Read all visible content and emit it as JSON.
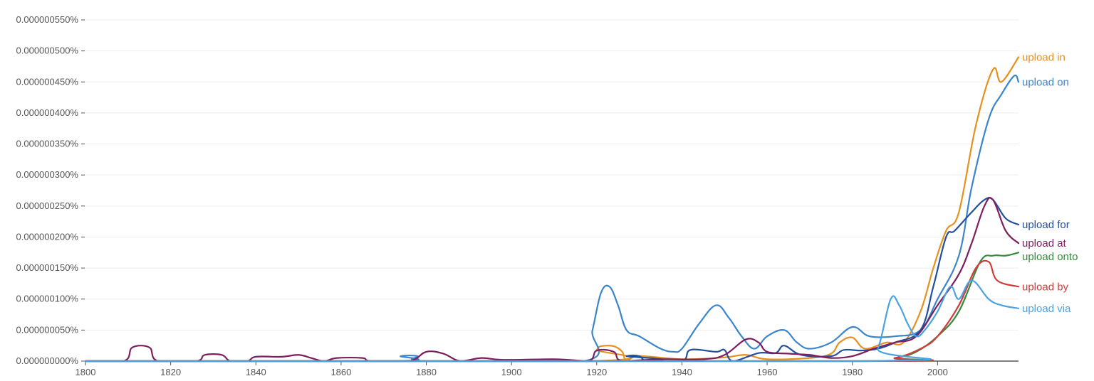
{
  "chart_data": {
    "type": "line",
    "title": "",
    "xlabel": "",
    "ylabel": "",
    "xlim": [
      1800,
      2019
    ],
    "ylim": [
      0,
      5.5e-09
    ],
    "grid": true,
    "legend_placement": "right, at line ends",
    "x_ticks": [
      {
        "value": 1800,
        "label": "1800"
      },
      {
        "value": 1820,
        "label": "1820"
      },
      {
        "value": 1840,
        "label": "1840"
      },
      {
        "value": 1860,
        "label": "1860"
      },
      {
        "value": 1880,
        "label": "1880"
      },
      {
        "value": 1900,
        "label": "1900"
      },
      {
        "value": 1920,
        "label": "1920"
      },
      {
        "value": 1940,
        "label": "1940"
      },
      {
        "value": 1960,
        "label": "1960"
      },
      {
        "value": 1980,
        "label": "1980"
      },
      {
        "value": 2000,
        "label": "2000"
      }
    ],
    "y_ticks": [
      {
        "value": 0,
        "label": "0.000000000%"
      },
      {
        "value": 5e-10,
        "label": "0.000000050%"
      },
      {
        "value": 1e-09,
        "label": "0.000000100%"
      },
      {
        "value": 1.5e-09,
        "label": "0.000000150%"
      },
      {
        "value": 2e-09,
        "label": "0.000000200%"
      },
      {
        "value": 2.5e-09,
        "label": "0.000000250%"
      },
      {
        "value": 3e-09,
        "label": "0.000000300%"
      },
      {
        "value": 3.5e-09,
        "label": "0.000000350%"
      },
      {
        "value": 4e-09,
        "label": "0.000000400%"
      },
      {
        "value": 4.5e-09,
        "label": "0.000000450%"
      },
      {
        "value": 5e-09,
        "label": "0.000000500%"
      },
      {
        "value": 5.5e-09,
        "label": "0.000000550%"
      }
    ],
    "series": [
      {
        "name": "upload in",
        "color": "#e8901f",
        "points": [
          [
            1800,
            0
          ],
          [
            1918,
            0
          ],
          [
            1920,
            1.8e-10
          ],
          [
            1921,
            2.4e-10
          ],
          [
            1924,
            2.4e-10
          ],
          [
            1926,
            1.5e-10
          ],
          [
            1927,
            0
          ],
          [
            1930,
            8e-11
          ],
          [
            1940,
            3e-11
          ],
          [
            1950,
            6e-11
          ],
          [
            1955,
            1e-10
          ],
          [
            1960,
            3e-11
          ],
          [
            1970,
            5e-11
          ],
          [
            1975,
            1.2e-10
          ],
          [
            1977,
            3e-10
          ],
          [
            1980,
            3.8e-10
          ],
          [
            1983,
            2e-10
          ],
          [
            1988,
            3e-10
          ],
          [
            1992,
            3e-10
          ],
          [
            1996,
            8e-10
          ],
          [
            1999,
            1.5e-09
          ],
          [
            2002,
            2.1e-09
          ],
          [
            2005,
            2.4e-09
          ],
          [
            2009,
            3.8e-09
          ],
          [
            2013,
            4.7e-09
          ],
          [
            2015,
            4.5e-09
          ],
          [
            2019,
            4.9e-09
          ]
        ],
        "label_text": "upload in"
      },
      {
        "name": "upload on",
        "color": "#3a85cc",
        "points": [
          [
            1800,
            0
          ],
          [
            1872,
            0
          ],
          [
            1874,
            8e-11
          ],
          [
            1878,
            8e-11
          ],
          [
            1880,
            0
          ],
          [
            1917,
            0
          ],
          [
            1919,
            5e-10
          ],
          [
            1921,
            1.1e-09
          ],
          [
            1923,
            1.2e-09
          ],
          [
            1925,
            9e-10
          ],
          [
            1927,
            5e-10
          ],
          [
            1930,
            4e-10
          ],
          [
            1935,
            2e-10
          ],
          [
            1938,
            1.5e-10
          ],
          [
            1940,
            2e-10
          ],
          [
            1944,
            6e-10
          ],
          [
            1948,
            9e-10
          ],
          [
            1951,
            7e-10
          ],
          [
            1954,
            4e-10
          ],
          [
            1957,
            2e-10
          ],
          [
            1960,
            4e-10
          ],
          [
            1964,
            5e-10
          ],
          [
            1967,
            3e-10
          ],
          [
            1970,
            2e-10
          ],
          [
            1975,
            3e-10
          ],
          [
            1980,
            5.5e-10
          ],
          [
            1984,
            4e-10
          ],
          [
            1990,
            4e-10
          ],
          [
            1996,
            5e-10
          ],
          [
            2000,
            1e-09
          ],
          [
            2005,
            1.7e-09
          ],
          [
            2008,
            2.8e-09
          ],
          [
            2012,
            3.9e-09
          ],
          [
            2015,
            4.3e-09
          ],
          [
            2018,
            4.6e-09
          ],
          [
            2019,
            4.5e-09
          ]
        ],
        "label_text": "upload on"
      },
      {
        "name": "upload for",
        "color": "#23509e",
        "points": [
          [
            1800,
            0
          ],
          [
            1925,
            0
          ],
          [
            1927,
            8e-11
          ],
          [
            1930,
            8e-11
          ],
          [
            1932,
            0
          ],
          [
            1940,
            0
          ],
          [
            1942,
            1.8e-10
          ],
          [
            1948,
            1.5e-10
          ],
          [
            1950,
            1.8e-10
          ],
          [
            1952,
            0
          ],
          [
            1958,
            1.3e-10
          ],
          [
            1962,
            1.3e-10
          ],
          [
            1964,
            2.5e-10
          ],
          [
            1968,
            1e-10
          ],
          [
            1975,
            8e-11
          ],
          [
            1978,
            1.8e-10
          ],
          [
            1982,
            1.7e-10
          ],
          [
            1986,
            2e-10
          ],
          [
            1990,
            3e-10
          ],
          [
            1996,
            5e-10
          ],
          [
            1999,
            1.2e-09
          ],
          [
            2002,
            2e-09
          ],
          [
            2004,
            2.1e-09
          ],
          [
            2008,
            2.4e-09
          ],
          [
            2011,
            2.6e-09
          ],
          [
            2013,
            2.6e-09
          ],
          [
            2016,
            2.3e-09
          ],
          [
            2019,
            2.2e-09
          ]
        ],
        "label_text": "upload for"
      },
      {
        "name": "upload at",
        "color": "#7e1e5e",
        "points": [
          [
            1800,
            0
          ],
          [
            1809,
            0
          ],
          [
            1811,
            2.2e-10
          ],
          [
            1815,
            2.2e-10
          ],
          [
            1817,
            0
          ],
          [
            1826,
            0
          ],
          [
            1828,
            1e-10
          ],
          [
            1832,
            1e-10
          ],
          [
            1834,
            0
          ],
          [
            1838,
            0
          ],
          [
            1840,
            7e-11
          ],
          [
            1846,
            7e-11
          ],
          [
            1850,
            1e-10
          ],
          [
            1853,
            5e-11
          ],
          [
            1856,
            0
          ],
          [
            1859,
            5e-11
          ],
          [
            1865,
            5e-11
          ],
          [
            1867,
            0
          ],
          [
            1876,
            0
          ],
          [
            1880,
            1.5e-10
          ],
          [
            1884,
            1.2e-10
          ],
          [
            1888,
            0
          ],
          [
            1893,
            5e-11
          ],
          [
            1898,
            2e-11
          ],
          [
            1910,
            3e-11
          ],
          [
            1918,
            0
          ],
          [
            1920,
            1.7e-10
          ],
          [
            1924,
            1.5e-10
          ],
          [
            1926,
            0
          ],
          [
            1935,
            3e-11
          ],
          [
            1945,
            3e-11
          ],
          [
            1950,
            1e-10
          ],
          [
            1955,
            3.5e-10
          ],
          [
            1958,
            3e-10
          ],
          [
            1960,
            1.5e-10
          ],
          [
            1965,
            1.2e-10
          ],
          [
            1970,
            1e-10
          ],
          [
            1975,
            5e-11
          ],
          [
            1980,
            8e-11
          ],
          [
            1985,
            2e-10
          ],
          [
            1990,
            3e-10
          ],
          [
            1995,
            4e-10
          ],
          [
            2000,
            9e-10
          ],
          [
            2005,
            1.4e-09
          ],
          [
            2008,
            1.9e-09
          ],
          [
            2011,
            2.5e-09
          ],
          [
            2013,
            2.6e-09
          ],
          [
            2016,
            2.1e-09
          ],
          [
            2019,
            1.9e-09
          ]
        ],
        "label_text": "upload at"
      },
      {
        "name": "upload onto",
        "color": "#358a3c",
        "points": [
          [
            1800,
            0
          ],
          [
            1982,
            0
          ],
          [
            1990,
            5e-11
          ],
          [
            1995,
            1.5e-10
          ],
          [
            2000,
            4e-10
          ],
          [
            2005,
            8e-10
          ],
          [
            2010,
            1.6e-09
          ],
          [
            2013,
            1.7e-09
          ],
          [
            2016,
            1.7e-09
          ],
          [
            2019,
            1.75e-09
          ]
        ],
        "label_text": "upload onto"
      },
      {
        "name": "upload by",
        "color": "#d23b3b",
        "points": [
          [
            1800,
            0
          ],
          [
            1982,
            0
          ],
          [
            1990,
            5e-11
          ],
          [
            1996,
            2e-10
          ],
          [
            2000,
            4e-10
          ],
          [
            2005,
            9e-10
          ],
          [
            2009,
            1.5e-09
          ],
          [
            2012,
            1.6e-09
          ],
          [
            2014,
            1.3e-09
          ],
          [
            2019,
            1.2e-09
          ]
        ],
        "label_text": "upload by"
      },
      {
        "name": "upload via",
        "color": "#4aa3e0",
        "points": [
          [
            1800,
            0
          ],
          [
            1983,
            0
          ],
          [
            1986,
            2e-10
          ],
          [
            1989,
            1e-09
          ],
          [
            1991,
            9e-10
          ],
          [
            1993,
            6e-10
          ],
          [
            1995,
            4e-10
          ],
          [
            1997,
            5e-10
          ],
          [
            2000,
            8e-10
          ],
          [
            2003,
            1.2e-09
          ],
          [
            2005,
            1e-09
          ],
          [
            2008,
            1.3e-09
          ],
          [
            2012,
            1e-09
          ],
          [
            2015,
            9e-10
          ],
          [
            2019,
            8.5e-10
          ]
        ],
        "label_text": "upload via"
      }
    ]
  }
}
